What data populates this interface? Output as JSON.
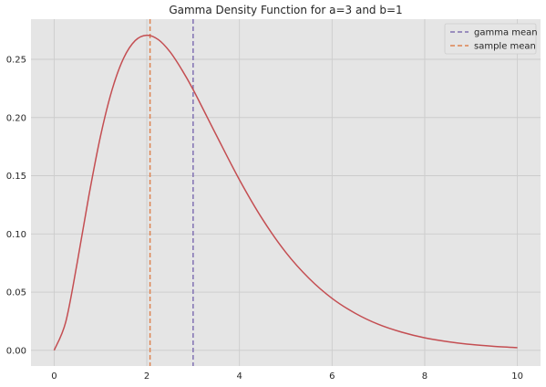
{
  "chart_data": {
    "type": "line",
    "title": "Gamma Density Function for a=3 and b=1",
    "xlabel": "",
    "ylabel": "",
    "xlim": [
      -0.5,
      10.5
    ],
    "ylim": [
      -0.0135,
      0.2845
    ],
    "x_ticks": [
      0,
      2,
      4,
      6,
      8,
      10
    ],
    "x_tick_labels": [
      "0",
      "2",
      "4",
      "6",
      "8",
      "10"
    ],
    "y_ticks": [
      0.0,
      0.05,
      0.1,
      0.15,
      0.2,
      0.25
    ],
    "y_tick_labels": [
      "0.00",
      "0.05",
      "0.10",
      "0.15",
      "0.20",
      "0.25"
    ],
    "grid": true,
    "legend_position": "top-right",
    "series": [
      {
        "kind": "curve",
        "color": "#c44e52",
        "x": [
          0,
          0.25,
          0.5,
          0.75,
          1,
          1.25,
          1.5,
          1.75,
          2,
          2.25,
          2.5,
          2.75,
          3,
          3.5,
          4,
          4.5,
          5,
          5.5,
          6,
          6.5,
          7,
          7.5,
          8,
          8.5,
          9,
          9.5,
          10
        ],
        "y": [
          0,
          0.0243,
          0.0758,
          0.1329,
          0.1839,
          0.2238,
          0.251,
          0.2661,
          0.2707,
          0.2669,
          0.2565,
          0.2415,
          0.224,
          0.1849,
          0.1465,
          0.1125,
          0.0842,
          0.0619,
          0.0446,
          0.0318,
          0.0223,
          0.0156,
          0.0107,
          0.0074,
          0.005,
          0.0034,
          0.0023
        ]
      },
      {
        "name": "gamma mean",
        "kind": "vline",
        "x": 3.0,
        "color": "#8172b2",
        "dash": true
      },
      {
        "name": "sample mean",
        "kind": "vline",
        "x": 2.07,
        "color": "#dd8452",
        "dash": true
      }
    ]
  }
}
